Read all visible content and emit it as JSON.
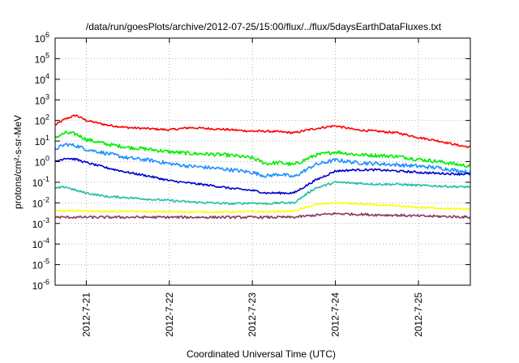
{
  "chart_data": {
    "type": "line",
    "title": "/data/run/goesPlots/archive/2012-07-25/15:00/flux/../flux/5daysEarthDataFluxes.txt",
    "xlabel": "Coordinated Universal Time (UTC)",
    "ylabel": "protons/cm²-s-sr-MeV",
    "yscale": "log",
    "ylim": [
      1e-06,
      1000000.0
    ],
    "xlim": [
      "2012-07-20 15:00",
      "2012-07-25 15:00"
    ],
    "grid": true,
    "x_ticks": [
      "2012-7-21",
      "2012-7-22",
      "2012-7-23",
      "2012-7-24",
      "2012-7-25"
    ],
    "x_tick_dates": [
      "2012-07-21 00:00",
      "2012-07-22 00:00",
      "2012-07-23 00:00",
      "2012-07-24 00:00",
      "2012-07-25 00:00"
    ],
    "y_ticks": [
      {
        "value": 1000000.0,
        "base": "10",
        "exp": "6"
      },
      {
        "value": 100000.0,
        "base": "10",
        "exp": "5"
      },
      {
        "value": 10000.0,
        "base": "10",
        "exp": "4"
      },
      {
        "value": 1000.0,
        "base": "10",
        "exp": "3"
      },
      {
        "value": 100.0,
        "base": "10",
        "exp": "2"
      },
      {
        "value": 10.0,
        "base": "10",
        "exp": "1"
      },
      {
        "value": 1.0,
        "base": "10",
        "exp": "0"
      },
      {
        "value": 0.1,
        "base": "10",
        "exp": "-1"
      },
      {
        "value": 0.01,
        "base": "10",
        "exp": "-2"
      },
      {
        "value": 0.001,
        "base": "10",
        "exp": "-3"
      },
      {
        "value": 0.0001,
        "base": "10",
        "exp": "-4"
      },
      {
        "value": 1e-05,
        "base": "10",
        "exp": "-5"
      },
      {
        "value": 1e-06,
        "base": "10",
        "exp": "-6"
      }
    ],
    "x": [
      "2012-07-20 15:00",
      "2012-07-20 18:00",
      "2012-07-20 21:00",
      "2012-07-21 00:00",
      "2012-07-21 06:00",
      "2012-07-21 12:00",
      "2012-07-21 18:00",
      "2012-07-22 00:00",
      "2012-07-22 06:00",
      "2012-07-22 12:00",
      "2012-07-22 18:00",
      "2012-07-23 00:00",
      "2012-07-23 04:00",
      "2012-07-23 08:00",
      "2012-07-23 12:00",
      "2012-07-23 18:00",
      "2012-07-24 00:00",
      "2012-07-24 06:00",
      "2012-07-24 12:00",
      "2012-07-24 18:00",
      "2012-07-25 00:00",
      "2012-07-25 06:00",
      "2012-07-25 12:00",
      "2012-07-25 15:00"
    ],
    "series": [
      {
        "color": "#ff0000",
        "values": [
          60,
          120,
          180,
          100,
          60,
          45,
          40,
          35,
          45,
          40,
          35,
          30,
          30,
          28,
          25,
          40,
          55,
          35,
          30,
          25,
          15,
          10,
          6,
          5
        ]
      },
      {
        "color": "#00ee00",
        "values": [
          15,
          25,
          22,
          12,
          7,
          5,
          4,
          3,
          2.5,
          2.3,
          2.0,
          1.5,
          0.8,
          0.9,
          0.7,
          2.0,
          3.0,
          2.2,
          2.0,
          1.8,
          1.3,
          1.0,
          0.7,
          0.6
        ]
      },
      {
        "color": "#1e90ff",
        "values": [
          4,
          7,
          6,
          4,
          2.5,
          1.5,
          1.2,
          0.8,
          0.6,
          0.5,
          0.4,
          0.3,
          0.2,
          0.25,
          0.18,
          0.7,
          1.2,
          0.9,
          0.8,
          0.7,
          0.6,
          0.5,
          0.35,
          0.3
        ]
      },
      {
        "color": "#0000cd",
        "values": [
          1.0,
          1.5,
          1.3,
          0.9,
          0.5,
          0.3,
          0.2,
          0.12,
          0.09,
          0.07,
          0.05,
          0.04,
          0.03,
          0.03,
          0.03,
          0.12,
          0.35,
          0.4,
          0.4,
          0.35,
          0.3,
          0.27,
          0.25,
          0.25
        ]
      },
      {
        "color": "#20c0a0",
        "values": [
          0.05,
          0.06,
          0.04,
          0.03,
          0.02,
          0.018,
          0.015,
          0.013,
          0.011,
          0.01,
          0.009,
          0.01,
          0.009,
          0.01,
          0.01,
          0.05,
          0.1,
          0.09,
          0.08,
          0.08,
          0.07,
          0.065,
          0.06,
          0.06
        ]
      },
      {
        "color": "#ffff00",
        "values": [
          0.004,
          0.004,
          0.0042,
          0.004,
          0.0038,
          0.0038,
          0.0037,
          0.0037,
          0.0036,
          0.0036,
          0.0036,
          0.0037,
          0.0037,
          0.0038,
          0.004,
          0.008,
          0.01,
          0.009,
          0.008,
          0.007,
          0.006,
          0.0055,
          0.005,
          0.005
        ]
      },
      {
        "color": "#8b3a62",
        "values": [
          0.002,
          0.002,
          0.002,
          0.002,
          0.002,
          0.002,
          0.002,
          0.002,
          0.002,
          0.002,
          0.002,
          0.002,
          0.002,
          0.002,
          0.002,
          0.0025,
          0.003,
          0.0028,
          0.0026,
          0.0025,
          0.0023,
          0.0022,
          0.0021,
          0.002
        ]
      }
    ]
  }
}
